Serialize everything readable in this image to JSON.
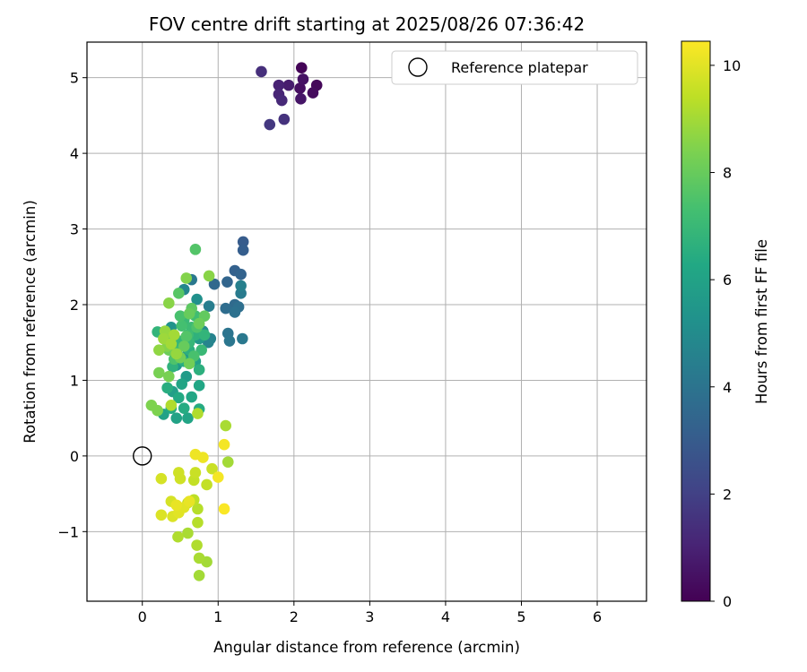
{
  "chart_data": {
    "type": "scatter",
    "title": "FOV centre drift starting at 2025/08/26 07:36:42",
    "xlabel": "Angular distance from reference (arcmin)",
    "ylabel": "Rotation from reference (arcmin)",
    "xlim": [
      -0.73,
      6.65
    ],
    "ylim": [
      -1.92,
      5.47
    ],
    "xticks": [
      0,
      1,
      2,
      3,
      4,
      5,
      6
    ],
    "yticks": [
      -1,
      0,
      1,
      2,
      3,
      4,
      5
    ],
    "grid": true,
    "legend": {
      "placement": "top-right",
      "entries": [
        "Reference platepar"
      ]
    },
    "reference_point": {
      "name": "Reference platepar",
      "x": 0,
      "y": 0,
      "marker": "open-circle"
    },
    "colorbar": {
      "label": "Hours from first FF file",
      "colormap": "viridis",
      "range": [
        0,
        10.45
      ],
      "ticks": [
        0,
        2,
        4,
        6,
        8,
        10
      ]
    },
    "points": [
      {
        "x": 2.1,
        "y": 5.13,
        "h": 0.1
      },
      {
        "x": 2.3,
        "y": 4.9,
        "h": 0.2
      },
      {
        "x": 2.25,
        "y": 4.8,
        "h": 0.3
      },
      {
        "x": 2.08,
        "y": 4.86,
        "h": 0.4
      },
      {
        "x": 2.12,
        "y": 4.98,
        "h": 0.5
      },
      {
        "x": 2.09,
        "y": 4.72,
        "h": 0.6
      },
      {
        "x": 1.93,
        "y": 4.9,
        "h": 0.8
      },
      {
        "x": 1.8,
        "y": 4.9,
        "h": 1.0
      },
      {
        "x": 1.8,
        "y": 4.78,
        "h": 1.1
      },
      {
        "x": 1.84,
        "y": 4.7,
        "h": 1.2
      },
      {
        "x": 1.57,
        "y": 5.08,
        "h": 1.4
      },
      {
        "x": 1.87,
        "y": 4.45,
        "h": 1.5
      },
      {
        "x": 1.68,
        "y": 4.38,
        "h": 1.7
      },
      {
        "x": 1.33,
        "y": 2.83,
        "h": 3.0
      },
      {
        "x": 1.33,
        "y": 2.72,
        "h": 3.1
      },
      {
        "x": 1.22,
        "y": 2.45,
        "h": 3.2
      },
      {
        "x": 1.3,
        "y": 2.4,
        "h": 3.3
      },
      {
        "x": 1.12,
        "y": 2.3,
        "h": 3.4
      },
      {
        "x": 0.95,
        "y": 2.27,
        "h": 3.5
      },
      {
        "x": 1.22,
        "y": 2.0,
        "h": 3.6
      },
      {
        "x": 1.1,
        "y": 1.95,
        "h": 3.7
      },
      {
        "x": 1.27,
        "y": 1.97,
        "h": 3.8
      },
      {
        "x": 1.22,
        "y": 1.9,
        "h": 3.9
      },
      {
        "x": 1.13,
        "y": 1.62,
        "h": 4.0
      },
      {
        "x": 1.15,
        "y": 1.52,
        "h": 4.1
      },
      {
        "x": 1.32,
        "y": 1.55,
        "h": 4.2
      },
      {
        "x": 1.3,
        "y": 2.15,
        "h": 4.3
      },
      {
        "x": 0.88,
        "y": 1.98,
        "h": 4.4
      },
      {
        "x": 1.3,
        "y": 2.25,
        "h": 4.5
      },
      {
        "x": 0.9,
        "y": 1.55,
        "h": 4.6
      },
      {
        "x": 0.87,
        "y": 1.5,
        "h": 4.7
      },
      {
        "x": 0.65,
        "y": 2.33,
        "h": 4.2
      },
      {
        "x": 0.55,
        "y": 2.2,
        "h": 4.8
      },
      {
        "x": 0.4,
        "y": 1.4,
        "h": 4.9
      },
      {
        "x": 0.8,
        "y": 1.65,
        "h": 5.0
      },
      {
        "x": 0.5,
        "y": 1.5,
        "h": 5.1
      },
      {
        "x": 0.72,
        "y": 2.07,
        "h": 5.2
      },
      {
        "x": 0.38,
        "y": 1.7,
        "h": 5.3
      },
      {
        "x": 0.6,
        "y": 1.35,
        "h": 5.4
      },
      {
        "x": 0.45,
        "y": 1.2,
        "h": 5.5
      },
      {
        "x": 0.75,
        "y": 1.55,
        "h": 5.6
      },
      {
        "x": 0.58,
        "y": 1.05,
        "h": 5.7
      },
      {
        "x": 0.4,
        "y": 0.85,
        "h": 5.8
      },
      {
        "x": 0.7,
        "y": 1.25,
        "h": 5.9
      },
      {
        "x": 0.28,
        "y": 0.55,
        "h": 6.0
      },
      {
        "x": 0.45,
        "y": 0.5,
        "h": 6.0
      },
      {
        "x": 0.6,
        "y": 0.5,
        "h": 6.1
      },
      {
        "x": 0.52,
        "y": 0.95,
        "h": 6.1
      },
      {
        "x": 0.75,
        "y": 0.93,
        "h": 6.2
      },
      {
        "x": 0.65,
        "y": 0.78,
        "h": 6.2
      },
      {
        "x": 0.48,
        "y": 0.77,
        "h": 6.3
      },
      {
        "x": 0.38,
        "y": 0.63,
        "h": 6.3
      },
      {
        "x": 0.55,
        "y": 0.63,
        "h": 6.4
      },
      {
        "x": 0.75,
        "y": 0.62,
        "h": 6.4
      },
      {
        "x": 0.33,
        "y": 0.9,
        "h": 6.5
      },
      {
        "x": 0.55,
        "y": 1.25,
        "h": 6.5
      },
      {
        "x": 0.75,
        "y": 1.14,
        "h": 6.6
      },
      {
        "x": 0.62,
        "y": 1.4,
        "h": 6.6
      },
      {
        "x": 0.4,
        "y": 1.18,
        "h": 6.7
      },
      {
        "x": 0.7,
        "y": 1.6,
        "h": 6.7
      },
      {
        "x": 0.82,
        "y": 1.6,
        "h": 6.8
      },
      {
        "x": 0.2,
        "y": 1.64,
        "h": 6.8
      },
      {
        "x": 0.48,
        "y": 1.52,
        "h": 6.9
      },
      {
        "x": 0.62,
        "y": 1.5,
        "h": 6.9
      },
      {
        "x": 0.78,
        "y": 1.4,
        "h": 7.0
      },
      {
        "x": 0.55,
        "y": 1.8,
        "h": 7.0
      },
      {
        "x": 0.65,
        "y": 1.7,
        "h": 7.1
      },
      {
        "x": 0.45,
        "y": 1.38,
        "h": 7.1
      },
      {
        "x": 0.7,
        "y": 1.85,
        "h": 7.2
      },
      {
        "x": 0.6,
        "y": 1.6,
        "h": 7.2
      },
      {
        "x": 0.38,
        "y": 1.55,
        "h": 7.3
      },
      {
        "x": 0.52,
        "y": 1.72,
        "h": 7.3
      },
      {
        "x": 0.68,
        "y": 1.32,
        "h": 7.4
      },
      {
        "x": 0.5,
        "y": 1.85,
        "h": 7.4
      },
      {
        "x": 0.72,
        "y": 1.7,
        "h": 7.5
      },
      {
        "x": 0.42,
        "y": 1.28,
        "h": 7.5
      },
      {
        "x": 0.58,
        "y": 1.58,
        "h": 7.6
      },
      {
        "x": 0.7,
        "y": 2.73,
        "h": 7.6
      },
      {
        "x": 0.48,
        "y": 2.15,
        "h": 7.7
      },
      {
        "x": 0.65,
        "y": 1.95,
        "h": 7.8
      },
      {
        "x": 0.82,
        "y": 1.85,
        "h": 7.9
      },
      {
        "x": 0.62,
        "y": 1.88,
        "h": 8.0
      },
      {
        "x": 0.55,
        "y": 1.45,
        "h": 8.0
      },
      {
        "x": 0.75,
        "y": 1.75,
        "h": 8.1
      },
      {
        "x": 0.35,
        "y": 1.4,
        "h": 8.1
      },
      {
        "x": 0.5,
        "y": 1.3,
        "h": 8.2
      },
      {
        "x": 0.62,
        "y": 1.22,
        "h": 8.2
      },
      {
        "x": 0.22,
        "y": 1.1,
        "h": 8.3
      },
      {
        "x": 0.35,
        "y": 1.05,
        "h": 8.3
      },
      {
        "x": 0.12,
        "y": 0.67,
        "h": 8.4
      },
      {
        "x": 0.2,
        "y": 0.6,
        "h": 8.4
      },
      {
        "x": 0.33,
        "y": 1.45,
        "h": 8.5
      },
      {
        "x": 0.58,
        "y": 2.35,
        "h": 8.5
      },
      {
        "x": 0.88,
        "y": 2.38,
        "h": 8.6
      },
      {
        "x": 0.35,
        "y": 2.02,
        "h": 8.6
      },
      {
        "x": 0.22,
        "y": 1.4,
        "h": 8.7
      },
      {
        "x": 0.3,
        "y": 1.65,
        "h": 8.8
      },
      {
        "x": 0.45,
        "y": 1.35,
        "h": 8.8
      },
      {
        "x": 0.28,
        "y": 1.55,
        "h": 8.9
      },
      {
        "x": 0.42,
        "y": 1.6,
        "h": 9.0
      },
      {
        "x": 0.38,
        "y": 1.48,
        "h": 9.0
      },
      {
        "x": 0.38,
        "y": 0.67,
        "h": 9.2
      },
      {
        "x": 0.73,
        "y": 0.56,
        "h": 9.2
      },
      {
        "x": 0.75,
        "y": -1.58,
        "h": 9.0
      },
      {
        "x": 0.85,
        "y": -1.4,
        "h": 9.0
      },
      {
        "x": 0.75,
        "y": -1.35,
        "h": 9.1
      },
      {
        "x": 0.72,
        "y": -1.18,
        "h": 9.2
      },
      {
        "x": 0.73,
        "y": -0.88,
        "h": 9.3
      },
      {
        "x": 0.73,
        "y": -0.7,
        "h": 9.3
      },
      {
        "x": 0.6,
        "y": -0.62,
        "h": 9.4
      },
      {
        "x": 0.68,
        "y": -0.58,
        "h": 9.4
      },
      {
        "x": 0.85,
        "y": -0.38,
        "h": 9.5
      },
      {
        "x": 0.68,
        "y": -0.32,
        "h": 9.5
      },
      {
        "x": 0.92,
        "y": -0.17,
        "h": 9.6
      },
      {
        "x": 0.7,
        "y": -0.22,
        "h": 9.6
      },
      {
        "x": 0.5,
        "y": -0.3,
        "h": 9.7
      },
      {
        "x": 0.48,
        "y": -0.22,
        "h": 9.7
      },
      {
        "x": 0.25,
        "y": -0.3,
        "h": 9.8
      },
      {
        "x": 0.38,
        "y": -0.6,
        "h": 9.8
      },
      {
        "x": 0.25,
        "y": -0.78,
        "h": 9.9
      },
      {
        "x": 0.4,
        "y": -0.8,
        "h": 9.9
      },
      {
        "x": 0.48,
        "y": -0.75,
        "h": 10.0
      },
      {
        "x": 0.55,
        "y": -0.68,
        "h": 10.0
      },
      {
        "x": 0.45,
        "y": -0.65,
        "h": 10.1
      },
      {
        "x": 0.62,
        "y": -0.6,
        "h": 10.1
      },
      {
        "x": 0.8,
        "y": -0.02,
        "h": 10.2
      },
      {
        "x": 0.7,
        "y": 0.02,
        "h": 10.2
      },
      {
        "x": 1.0,
        "y": -0.28,
        "h": 10.3
      },
      {
        "x": 1.08,
        "y": 0.15,
        "h": 10.3
      },
      {
        "x": 1.08,
        "y": -0.7,
        "h": 10.4
      },
      {
        "x": 0.6,
        "y": -1.02,
        "h": 9.1
      },
      {
        "x": 0.47,
        "y": -1.07,
        "h": 9.2
      },
      {
        "x": 1.1,
        "y": 0.4,
        "h": 9.1
      },
      {
        "x": 1.13,
        "y": -0.08,
        "h": 9.0
      }
    ]
  }
}
